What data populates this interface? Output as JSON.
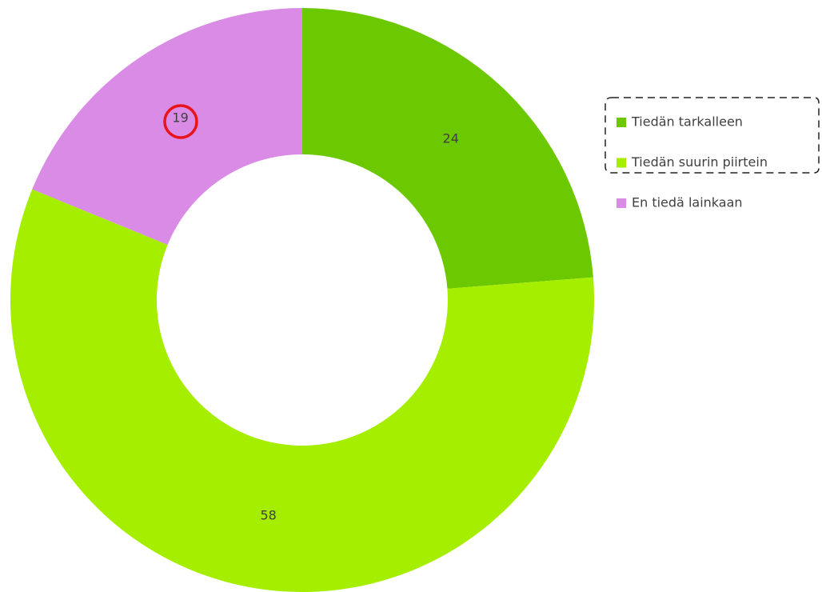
{
  "chart_data": {
    "type": "donut",
    "categories": [
      "Tiedän tarkalleen",
      "Tiedän suurin piirtein",
      "En tiedä lainkaan"
    ],
    "values": [
      24,
      58,
      19
    ],
    "colors": [
      "#6cc800",
      "#a6ee00",
      "#d98be6"
    ],
    "legend": "right"
  }
}
